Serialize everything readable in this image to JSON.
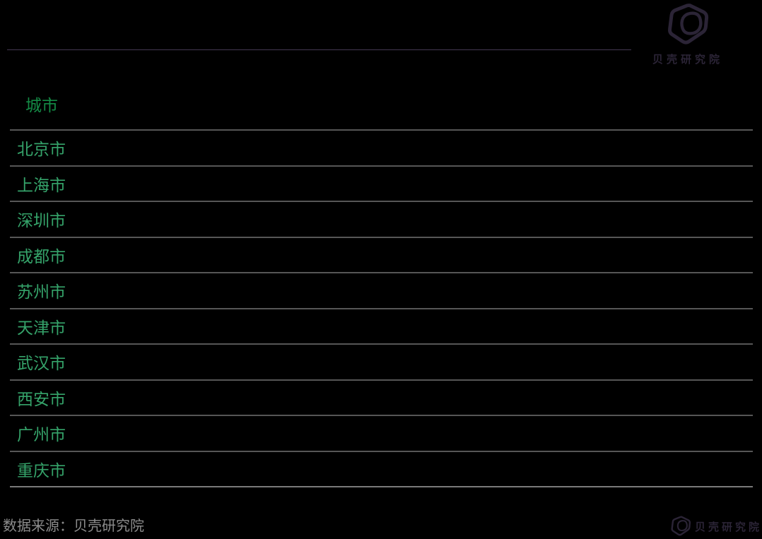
{
  "chart_data": {
    "type": "table",
    "title": "",
    "columns": [
      "城市"
    ],
    "rows": [
      [
        "北京市"
      ],
      [
        "上海市"
      ],
      [
        "深圳市"
      ],
      [
        "成都市"
      ],
      [
        "苏州市"
      ],
      [
        "天津市"
      ],
      [
        "武汉市"
      ],
      [
        "西安市"
      ],
      [
        "广州市"
      ],
      [
        "重庆市"
      ]
    ],
    "layout": {
      "grid": "horizontal-lines-only",
      "background": "#000000"
    }
  },
  "brand": {
    "logo_text_top": "贝壳研究院",
    "logo_text_bottom": "贝壳研究院",
    "logo_color": "#2b2436"
  },
  "table": {
    "header_label": "城市",
    "cities": [
      "北京市",
      "上海市",
      "深圳市",
      "成都市",
      "苏州市",
      "天津市",
      "武汉市",
      "西安市",
      "广州市",
      "重庆市"
    ],
    "header_text_color": "#148c46",
    "row_text_color": "#35a36a",
    "grid_line_color": "#565656",
    "bottom_line_color": "#7a7a7a",
    "top_divider_color": "#443852"
  },
  "footer": {
    "source_text": "数据来源：贝壳研究院",
    "source_text_color": "#8c8c8c"
  }
}
